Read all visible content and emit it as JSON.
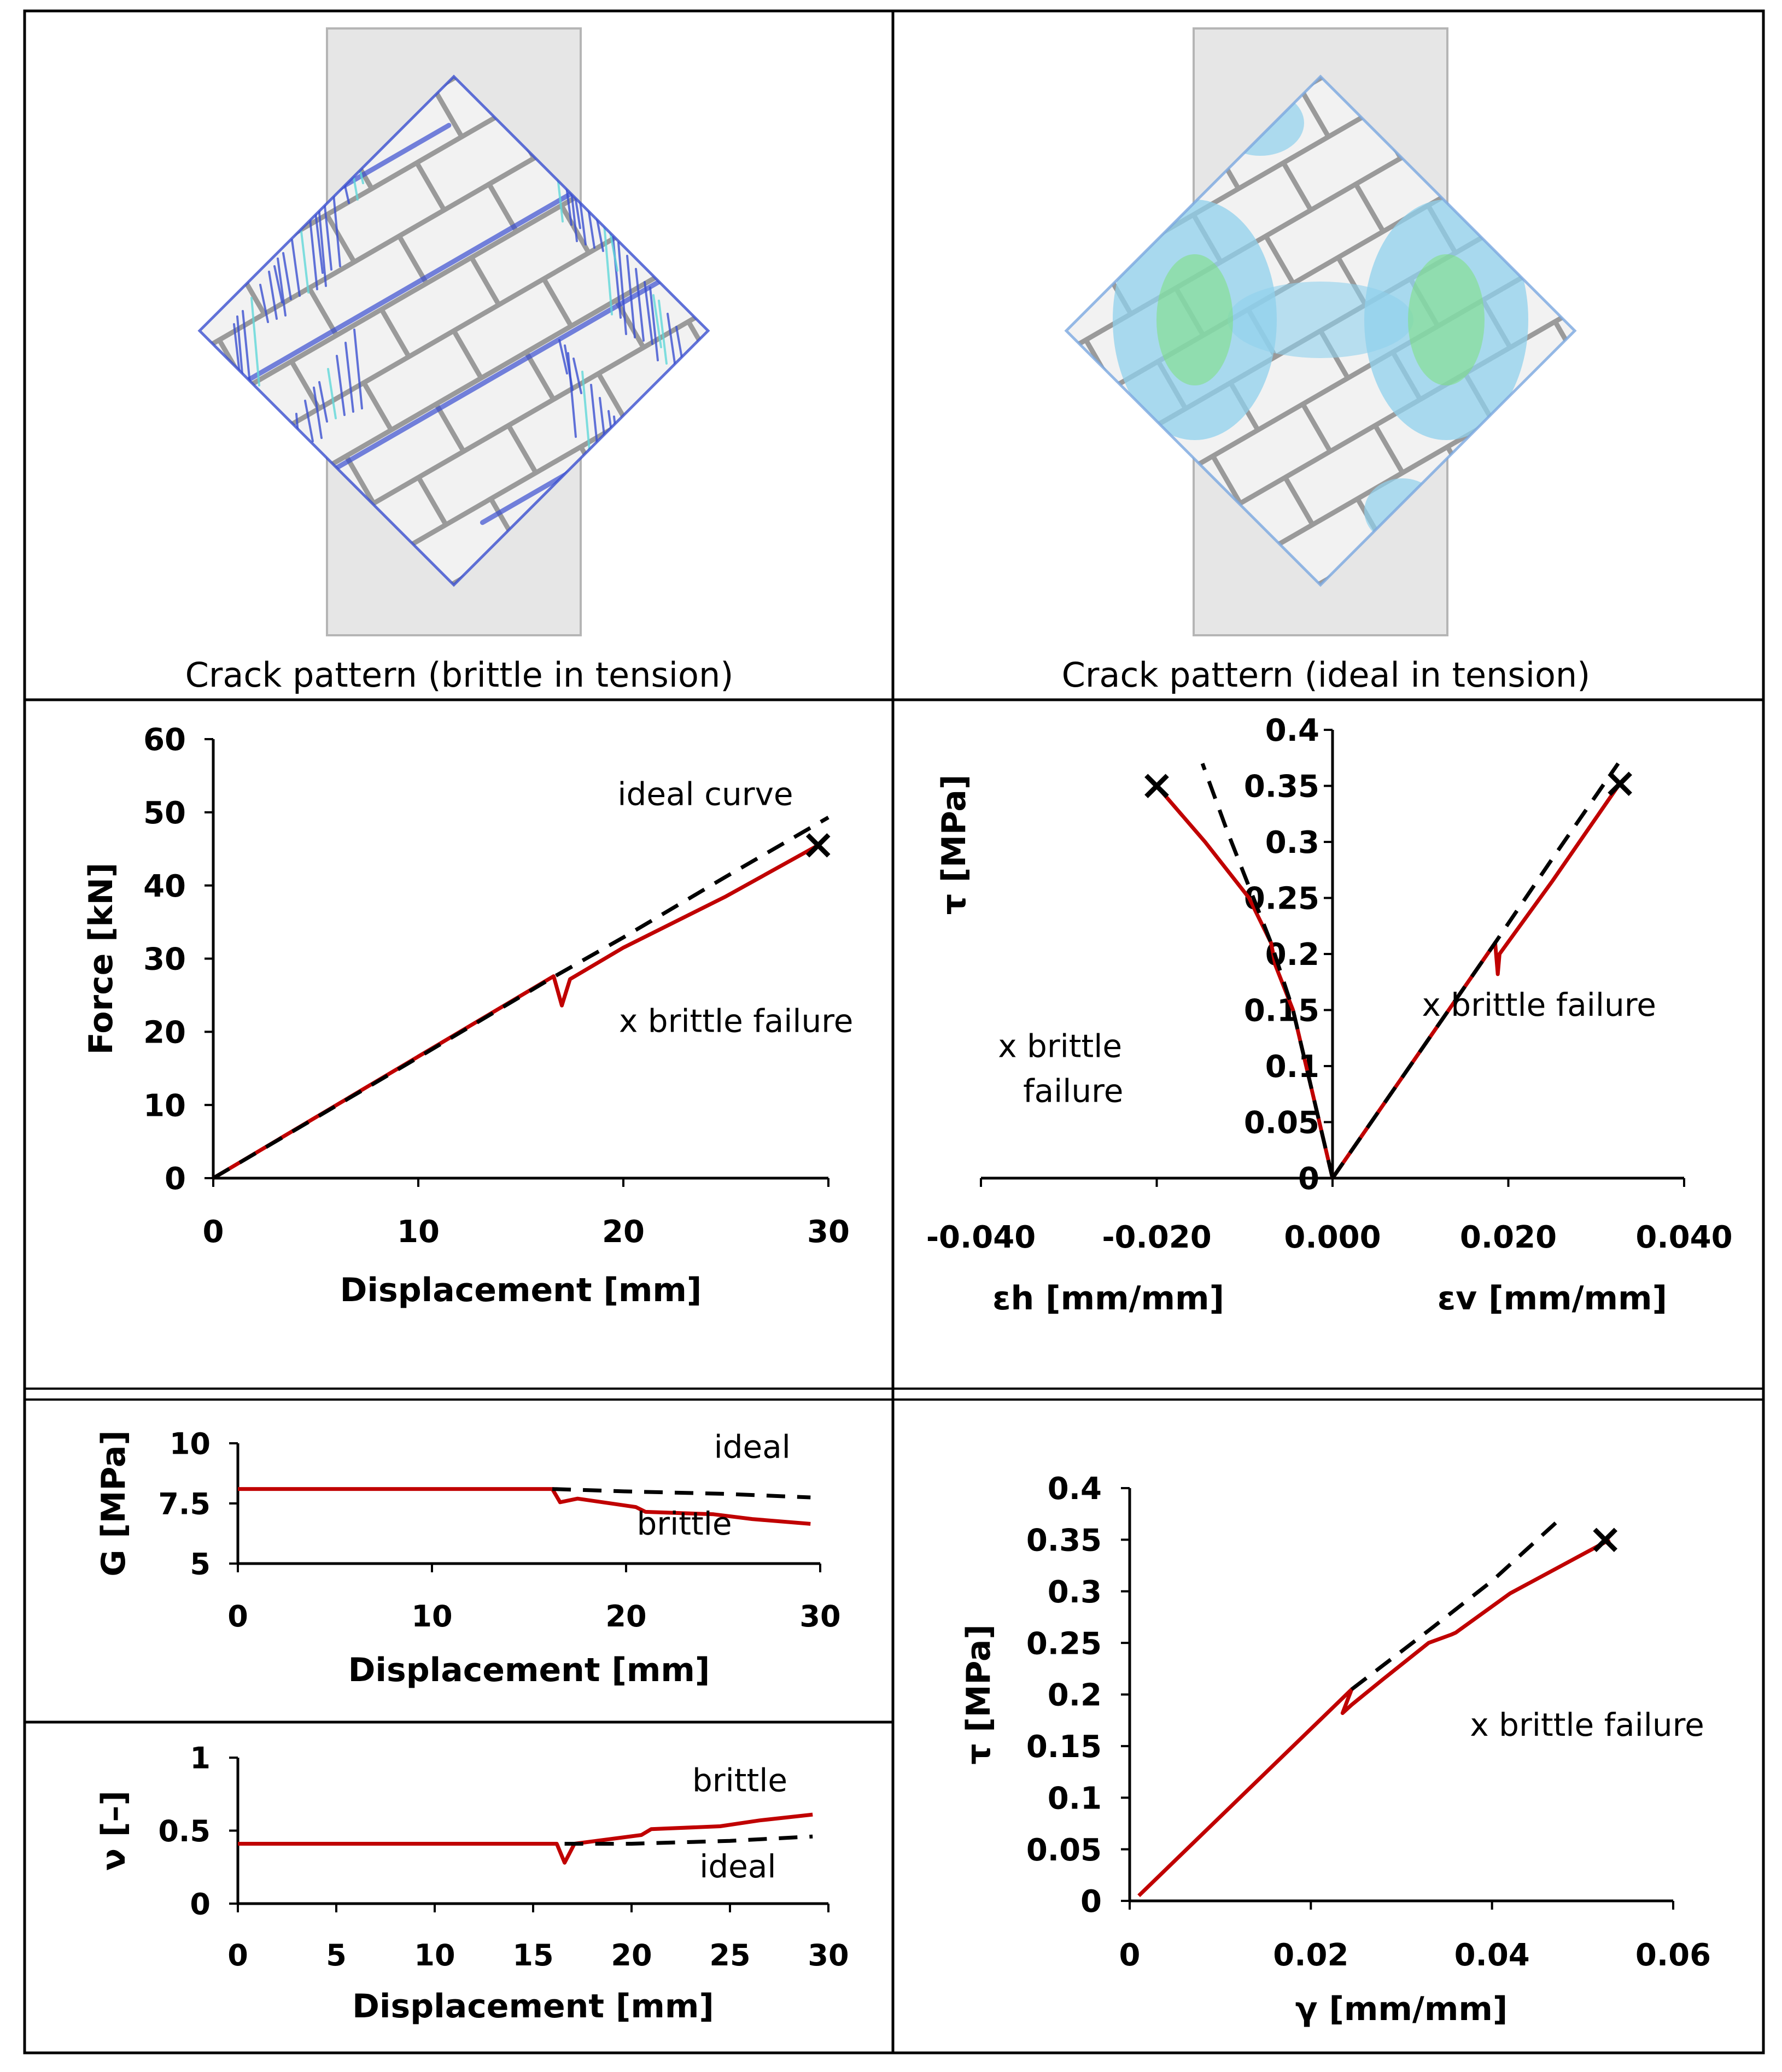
{
  "captions": {
    "left": "Crack pattern (brittle in tension)",
    "right": "Crack pattern (ideal in tension)"
  },
  "colors": {
    "brittle": "#c00000",
    "ideal": "#000000",
    "crack_blue": "#3a4fd0",
    "crack_cyan": "#5fd7d8",
    "crack_green": "#7be07b",
    "wall": "#e6e6e6",
    "mortar": "#9a9a9a"
  },
  "chart_data": [
    {
      "id": "force",
      "type": "line",
      "xlabel": "Displacement [mm]",
      "ylabel": "Force [kN]",
      "xlim": [
        0,
        30
      ],
      "ylim": [
        0,
        60
      ],
      "xticks": [
        "0",
        "10",
        "20",
        "30"
      ],
      "yticks": [
        "0",
        "10",
        "20",
        "30",
        "40",
        "50",
        "60"
      ],
      "xtickvals": [
        0,
        10,
        20,
        30
      ],
      "ytickvals": [
        0,
        10,
        20,
        30,
        40,
        50,
        60
      ],
      "series": [
        {
          "name": "brittle",
          "style": "solid",
          "x": [
            0,
            16.6,
            17.0,
            17.4,
            20,
            25,
            29.5
          ],
          "y": [
            0,
            27.6,
            23.6,
            27.2,
            31.5,
            38.5,
            45.5
          ]
        },
        {
          "name": "ideal",
          "style": "dashed",
          "x": [
            0,
            10,
            16.6,
            20,
            25,
            30
          ],
          "y": [
            0,
            16.5,
            27.5,
            32.9,
            41.2,
            49.3
          ]
        }
      ],
      "markers": [
        {
          "x": 29.5,
          "y": 45.5,
          "label": "×"
        }
      ],
      "annotations": [
        {
          "text": "ideal curve",
          "x": 24,
          "y": 51
        },
        {
          "text": "x brittle failure",
          "x": 25.5,
          "y": 20
        }
      ]
    },
    {
      "id": "strain",
      "type": "line",
      "xlabel_left": "εh [mm/mm]",
      "xlabel_right": "εv [mm/mm]",
      "ylabel": "τ [MPa]",
      "xlim": [
        -0.04,
        0.04
      ],
      "ylim": [
        0,
        0.4
      ],
      "xticks": [
        "-0.040",
        "-0.020",
        "0.000",
        "0.020",
        "0.040"
      ],
      "yticks": [
        "0",
        "0.05",
        "0.1",
        "0.15",
        "0.2",
        "0.25",
        "0.3",
        "0.35",
        "0.4"
      ],
      "xtickvals": [
        -0.04,
        -0.02,
        0,
        0.02,
        0.04
      ],
      "ytickvals": [
        0,
        0.05,
        0.1,
        0.15,
        0.2,
        0.25,
        0.3,
        0.35,
        0.4
      ],
      "series": [
        {
          "name": "brittle-eh",
          "style": "solid",
          "x": [
            0,
            -0.0045,
            -0.0065,
            -0.007,
            -0.0095,
            -0.0145,
            -0.02
          ],
          "y": [
            0,
            0.15,
            0.19,
            0.21,
            0.25,
            0.3,
            0.35
          ]
        },
        {
          "name": "ideal-eh",
          "style": "dashed",
          "x": [
            0,
            -0.0045,
            -0.007,
            -0.0095,
            -0.012,
            -0.0148
          ],
          "y": [
            0,
            0.15,
            0.21,
            0.26,
            0.31,
            0.37
          ]
        },
        {
          "name": "brittle-ev",
          "style": "solid",
          "x": [
            0,
            0.0185,
            0.0188,
            0.019,
            0.025,
            0.0325
          ],
          "y": [
            0,
            0.21,
            0.182,
            0.2,
            0.265,
            0.35
          ]
        },
        {
          "name": "ideal-ev",
          "style": "dashed",
          "x": [
            0,
            0.0185,
            0.025,
            0.0325
          ],
          "y": [
            0,
            0.21,
            0.285,
            0.37
          ]
        }
      ],
      "markers": [
        {
          "x": -0.02,
          "y": 0.35,
          "label": "×"
        },
        {
          "x": 0.0327,
          "y": 0.352,
          "label": "×"
        }
      ],
      "annotations": [
        {
          "text": "x brittle",
          "x": -0.031,
          "y": 0.108
        },
        {
          "text": "failure",
          "x": -0.0295,
          "y": 0.068
        },
        {
          "text": "x brittle failure",
          "x": 0.0235,
          "y": 0.145
        }
      ]
    },
    {
      "id": "shear-modulus",
      "type": "line",
      "xlabel": "Displacement [mm]",
      "ylabel": "G [MPa]",
      "xlim": [
        0,
        30
      ],
      "ylim": [
        5,
        10
      ],
      "xticks": [
        "0",
        "10",
        "20",
        "30"
      ],
      "yticks": [
        "5",
        "7.5",
        "10"
      ],
      "xtickvals": [
        0,
        10,
        20,
        30
      ],
      "ytickvals": [
        5,
        7.5,
        10
      ],
      "series": [
        {
          "name": "brittle",
          "style": "solid",
          "x": [
            0,
            16.2,
            16.6,
            17.5,
            20.5,
            21,
            24.5,
            26.5,
            29.5
          ],
          "y": [
            8.1,
            8.1,
            7.55,
            7.7,
            7.35,
            7.15,
            7.05,
            6.85,
            6.65
          ]
        },
        {
          "name": "ideal",
          "style": "dashed",
          "x": [
            16.2,
            20,
            25,
            29.5
          ],
          "y": [
            8.1,
            8.0,
            7.9,
            7.75
          ]
        }
      ],
      "markers": [],
      "annotations": [
        {
          "text": "ideal",
          "x": 26.5,
          "y": 9.4
        },
        {
          "text": "brittle",
          "x": 23,
          "y": 6.2
        }
      ]
    },
    {
      "id": "poisson",
      "type": "line",
      "xlabel": "Displacement [mm]",
      "ylabel": "ν [–]",
      "xlim": [
        0,
        30
      ],
      "ylim": [
        0,
        1
      ],
      "xticks": [
        "0",
        "5",
        "10",
        "15",
        "20",
        "25",
        "30"
      ],
      "yticks": [
        "0",
        "0.5",
        "1"
      ],
      "xtickvals": [
        0,
        5,
        10,
        15,
        20,
        25,
        30
      ],
      "ytickvals": [
        0,
        0.5,
        1
      ],
      "series": [
        {
          "name": "brittle",
          "style": "solid",
          "x": [
            0,
            16.2,
            16.6,
            17.1,
            20.5,
            21,
            24.5,
            26.5,
            29.2
          ],
          "y": [
            0.41,
            0.41,
            0.28,
            0.41,
            0.47,
            0.51,
            0.53,
            0.57,
            0.61
          ]
        },
        {
          "name": "ideal",
          "style": "dashed",
          "x": [
            16.6,
            20,
            25,
            29.2
          ],
          "y": [
            0.41,
            0.41,
            0.43,
            0.46
          ]
        }
      ],
      "markers": [],
      "annotations": [
        {
          "text": "brittle",
          "x": 25.5,
          "y": 0.77
        },
        {
          "text": "ideal",
          "x": 25.4,
          "y": 0.18
        }
      ]
    },
    {
      "id": "shear-strain",
      "type": "line",
      "xlabel": "γ [mm/mm]",
      "ylabel": "τ [MPa]",
      "xlim": [
        0,
        0.06
      ],
      "ylim": [
        0,
        0.4
      ],
      "xticks": [
        "0",
        "0.02",
        "0.04",
        "0.06"
      ],
      "yticks": [
        "0",
        "0.05",
        "0.1",
        "0.15",
        "0.2",
        "0.25",
        "0.3",
        "0.35",
        "0.4"
      ],
      "xtickvals": [
        0,
        0.02,
        0.04,
        0.06
      ],
      "ytickvals": [
        0,
        0.05,
        0.1,
        0.15,
        0.2,
        0.25,
        0.3,
        0.35,
        0.4
      ],
      "series": [
        {
          "name": "brittle",
          "style": "solid",
          "x": [
            0.001,
            0.0245,
            0.0235,
            0.0245,
            0.028,
            0.033,
            0.0355,
            0.036,
            0.042,
            0.053
          ],
          "y": [
            0.005,
            0.205,
            0.182,
            0.19,
            0.215,
            0.25,
            0.258,
            0.26,
            0.298,
            0.35
          ]
        },
        {
          "name": "ideal",
          "style": "dashed",
          "x": [
            0.0245,
            0.033,
            0.04,
            0.0475
          ],
          "y": [
            0.205,
            0.262,
            0.31,
            0.37
          ]
        }
      ],
      "markers": [
        {
          "x": 0.0525,
          "y": 0.35,
          "label": "×"
        }
      ],
      "annotations": [
        {
          "text": "x brittle failure",
          "x": 0.0505,
          "y": 0.16
        }
      ]
    }
  ]
}
